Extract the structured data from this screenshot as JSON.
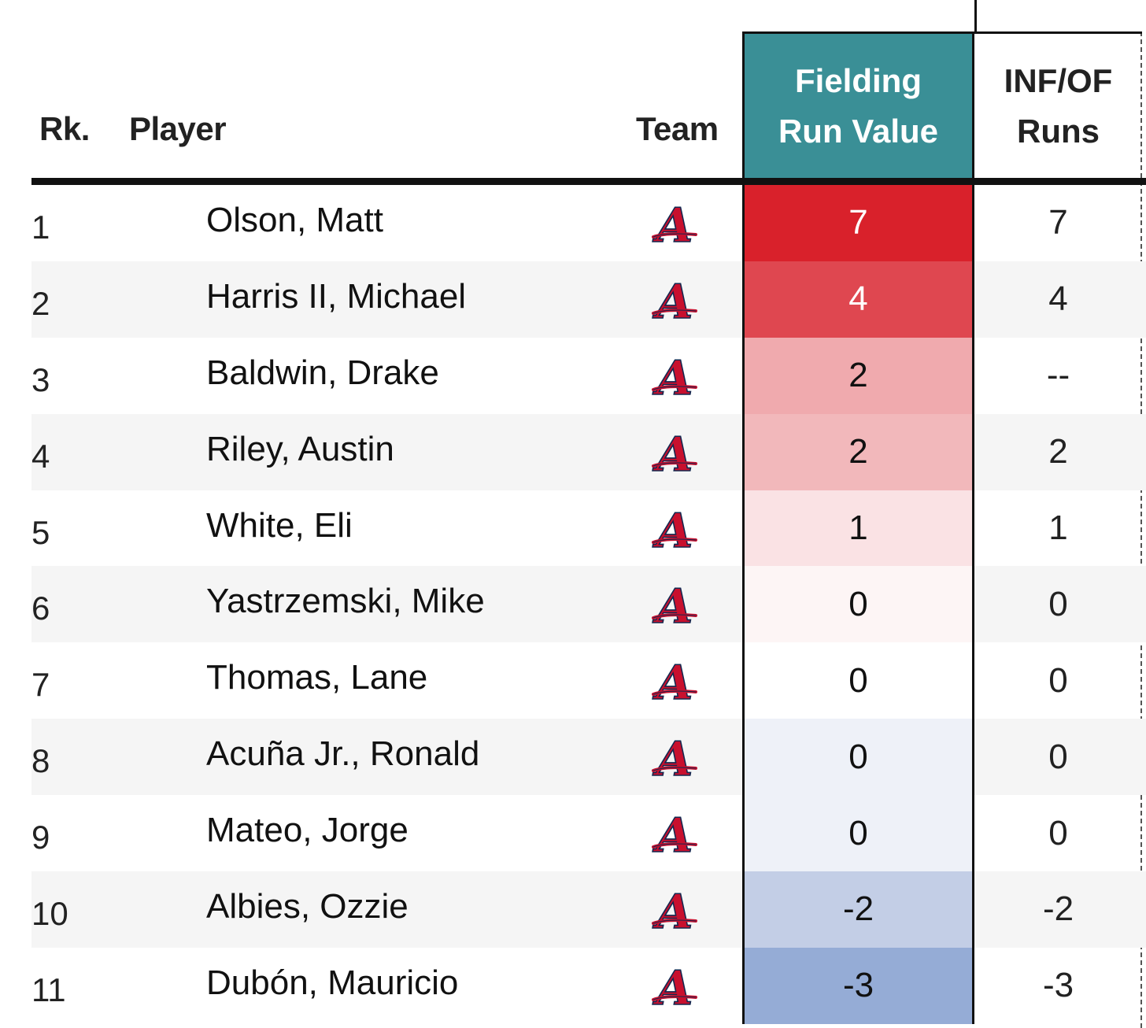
{
  "headers": {
    "rank": "Rk.",
    "player": "Player",
    "team": "Team",
    "frv_line1": "Fielding",
    "frv_line2": "Run Value",
    "inf_line1": "INF/OF",
    "inf_line2": "Runs"
  },
  "colors": {
    "header_accent": "#3a8f96",
    "logo": "#c8102e",
    "logo_outline": "#13274f"
  },
  "team_logo_icon": "braves-a-logo-icon",
  "rows": [
    {
      "rank": "1",
      "player": "Olson, Matt",
      "frv": "7",
      "inf": "7",
      "frv_bg": "#d9212b",
      "frv_fg": "#ffffff"
    },
    {
      "rank": "2",
      "player": "Harris II, Michael",
      "frv": "4",
      "inf": "4",
      "frv_bg": "#df4750",
      "frv_fg": "#ffffff"
    },
    {
      "rank": "3",
      "player": "Baldwin, Drake",
      "frv": "2",
      "inf": "--",
      "frv_bg": "#f0aaae",
      "frv_fg": "#111111"
    },
    {
      "rank": "4",
      "player": "Riley, Austin",
      "frv": "2",
      "inf": "2",
      "frv_bg": "#f2b8bb",
      "frv_fg": "#111111"
    },
    {
      "rank": "5",
      "player": "White, Eli",
      "frv": "1",
      "inf": "1",
      "frv_bg": "#fae2e4",
      "frv_fg": "#111111"
    },
    {
      "rank": "6",
      "player": "Yastrzemski, Mike",
      "frv": "0",
      "inf": "0",
      "frv_bg": "#fdf5f5",
      "frv_fg": "#111111"
    },
    {
      "rank": "7",
      "player": "Thomas, Lane",
      "frv": "0",
      "inf": "0",
      "frv_bg": "#ffffff",
      "frv_fg": "#111111"
    },
    {
      "rank": "8",
      "player": "Acuña Jr., Ronald",
      "frv": "0",
      "inf": "0",
      "frv_bg": "#eef1f8",
      "frv_fg": "#111111"
    },
    {
      "rank": "9",
      "player": "Mateo, Jorge",
      "frv": "0",
      "inf": "0",
      "frv_bg": "#eef1f8",
      "frv_fg": "#111111"
    },
    {
      "rank": "10",
      "player": "Albies, Ozzie",
      "frv": "-2",
      "inf": "-2",
      "frv_bg": "#c3cee6",
      "frv_fg": "#111111"
    },
    {
      "rank": "11",
      "player": "Dubón, Mauricio",
      "frv": "-3",
      "inf": "-3",
      "frv_bg": "#95acd6",
      "frv_fg": "#111111"
    }
  ]
}
